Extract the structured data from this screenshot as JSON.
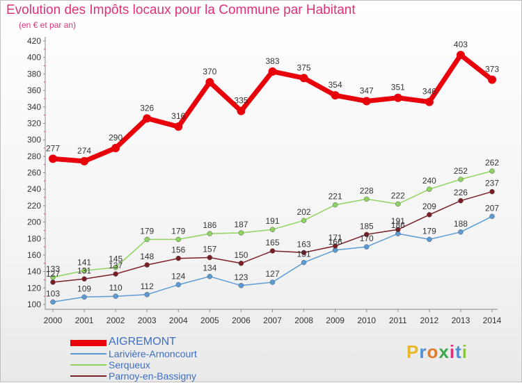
{
  "header": {
    "title": "Evolution des Impôts locaux pour la Commune par Habitant",
    "subtitle": "(en € et par an)"
  },
  "logo": {
    "letters": [
      "P",
      "r",
      "o",
      "x",
      "i",
      "t",
      "i"
    ],
    "colors": [
      "#e8b72a",
      "#4f8fd6",
      "#e07b2a",
      "#3aa84a",
      "#e0307a",
      "#4f8fd6",
      "#8cc63f"
    ]
  },
  "chart_data": {
    "type": "line",
    "title": "Evolution des Impôts locaux pour la Commune par Habitant",
    "subtitle": "(en € et par an)",
    "x": [
      "2000",
      "2001",
      "2002",
      "2003",
      "2004",
      "2005",
      "2006",
      "2007",
      "2008",
      "2009",
      "2010",
      "2011",
      "2012",
      "2013",
      "2014"
    ],
    "y_ticks": [
      "100",
      "120",
      "140",
      "160",
      "180",
      "200",
      "220",
      "240",
      "260",
      "280",
      "300",
      "320",
      "340",
      "360",
      "380",
      "400",
      "420"
    ],
    "ylim": [
      100,
      420
    ],
    "grid": false,
    "legend_position": "bottom-left",
    "series": [
      {
        "name": "AIGREMONT",
        "color": "#e8000b",
        "width": 7,
        "marker": 6,
        "values": [
          277,
          274,
          290,
          326,
          316,
          370,
          335,
          383,
          375,
          354,
          347,
          351,
          346,
          403,
          373
        ]
      },
      {
        "name": "Larivière-Arnoncourt",
        "color": "#5b9bd5",
        "width": 1.5,
        "marker": 3.5,
        "values": [
          103,
          109,
          110,
          112,
          124,
          134,
          123,
          127,
          151,
          166,
          170,
          186,
          179,
          188,
          207
        ]
      },
      {
        "name": "Serqueux",
        "color": "#8fd45e",
        "width": 1.5,
        "marker": 3.5,
        "values": [
          133,
          141,
          145,
          179,
          179,
          186,
          187,
          191,
          202,
          221,
          228,
          222,
          240,
          252,
          262
        ]
      },
      {
        "name": "Parnoy-en-Bassigny",
        "color": "#7b1e25",
        "width": 1.5,
        "marker": 3.5,
        "values": [
          127,
          131,
          137,
          148,
          156,
          157,
          150,
          165,
          163,
          171,
          185,
          191,
          209,
          226,
          237
        ]
      }
    ]
  }
}
